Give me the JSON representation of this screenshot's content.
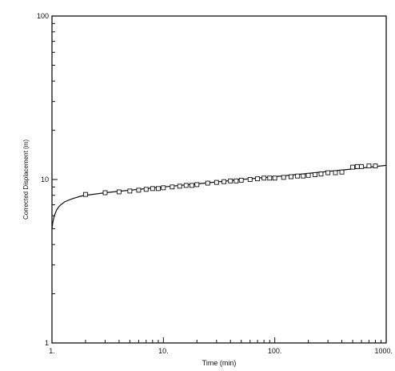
{
  "chart_data": {
    "type": "scatter",
    "title": "",
    "xlabel": "Time (min)",
    "ylabel": "Corrected Displacement (m)",
    "x_scale": "log",
    "y_scale": "log",
    "xlim": [
      1,
      1000
    ],
    "ylim": [
      1,
      100
    ],
    "grid": false,
    "legend": "none",
    "x_ticks": [
      {
        "value": 1,
        "label": "1."
      },
      {
        "value": 10,
        "label": "10."
      },
      {
        "value": 100,
        "label": "100."
      },
      {
        "value": 1000,
        "label": "1000."
      }
    ],
    "y_ticks": [
      {
        "value": 1,
        "label": "1"
      },
      {
        "value": 10,
        "label": "10"
      },
      {
        "value": 100,
        "label": "100"
      }
    ],
    "series": [
      {
        "kind": "observed",
        "marker": "square-open",
        "x": [
          2,
          3,
          4,
          5,
          6,
          7,
          8,
          9,
          10,
          12,
          14,
          16,
          18,
          20,
          25,
          30,
          35,
          40,
          45,
          50,
          60,
          70,
          80,
          90,
          100,
          120,
          140,
          160,
          180,
          200,
          230,
          260,
          300,
          350,
          400,
          500,
          550,
          600,
          700,
          800
        ],
        "y": [
          8.1,
          8.3,
          8.4,
          8.5,
          8.6,
          8.7,
          8.8,
          8.8,
          8.9,
          9.0,
          9.1,
          9.2,
          9.2,
          9.3,
          9.5,
          9.6,
          9.7,
          9.8,
          9.8,
          9.9,
          10.0,
          10.1,
          10.2,
          10.2,
          10.2,
          10.3,
          10.4,
          10.5,
          10.5,
          10.6,
          10.7,
          10.8,
          11.0,
          11.0,
          11.1,
          11.9,
          12.0,
          12.0,
          12.1,
          12.1
        ]
      },
      {
        "kind": "fitted",
        "marker": "line",
        "x": [
          1.0,
          1.02,
          1.05,
          1.1,
          1.15,
          1.2,
          1.3,
          1.5,
          1.8,
          2,
          3,
          5,
          10,
          20,
          50,
          100,
          200,
          500,
          1000
        ],
        "y": [
          5.0,
          5.5,
          6.0,
          6.5,
          6.8,
          7.0,
          7.3,
          7.6,
          7.9,
          8.0,
          8.3,
          8.6,
          9.0,
          9.4,
          10.0,
          10.4,
          10.9,
          11.6,
          12.2
        ]
      }
    ],
    "colors": {
      "ink": "#111111",
      "background": "#ffffff"
    }
  }
}
